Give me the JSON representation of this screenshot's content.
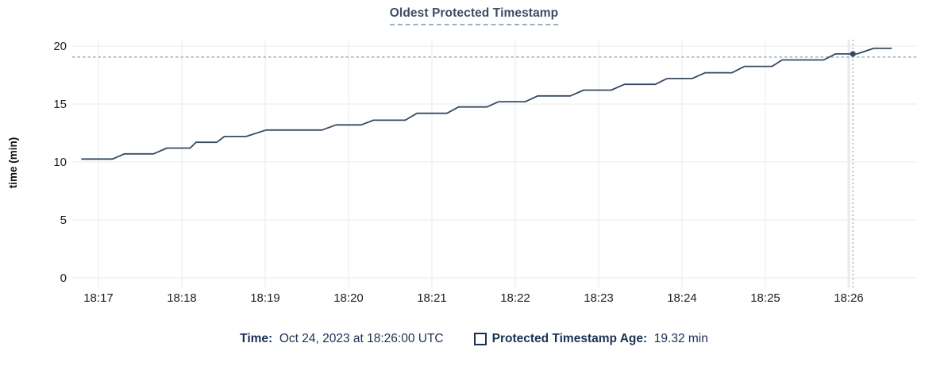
{
  "title": "Oldest Protected Timestamp",
  "footer": {
    "time_label": "Time:",
    "time_value": "Oct 24, 2023 at 18:26:00 UTC",
    "series_label": "Protected Timestamp Age:",
    "series_value": "19.32 min",
    "checkbox_icon": "unchecked-square"
  },
  "colors": {
    "line": "#374a63",
    "dot": "#374a63",
    "title_text": "#3e4c63",
    "title_underline": "#9cb0c3",
    "footer_text": "#1a3152",
    "crosshair": "#9fb1c1",
    "gridline": "#f0f0f0",
    "hover_band": "#e8eaec",
    "axis_text": "#1f1f1f"
  },
  "chart_data": {
    "type": "line",
    "title": "Oldest Protected Timestamp",
    "xlabel": "",
    "ylabel": "time (min)",
    "ylim": [
      0,
      20
    ],
    "y_ticks": [
      0,
      5,
      10,
      15,
      20
    ],
    "x_tick_labels": [
      "18:17",
      "18:18",
      "18:19",
      "18:20",
      "18:21",
      "18:22",
      "18:23",
      "18:24",
      "18:25",
      "18:26"
    ],
    "x_unit": "minutes after 18:17",
    "x_domain": [
      -0.31,
      9.82
    ],
    "grid": true,
    "legend_position": "bottom",
    "series": [
      {
        "name": "Protected Timestamp Age",
        "points": [
          [
            -0.2,
            10.25
          ],
          [
            0.17,
            10.25
          ],
          [
            0.31,
            10.7
          ],
          [
            0.66,
            10.7
          ],
          [
            0.82,
            11.2
          ],
          [
            1.1,
            11.2
          ],
          [
            1.17,
            11.7
          ],
          [
            1.42,
            11.7
          ],
          [
            1.51,
            12.2
          ],
          [
            1.77,
            12.2
          ],
          [
            2.01,
            12.75
          ],
          [
            2.68,
            12.75
          ],
          [
            2.85,
            13.2
          ],
          [
            3.15,
            13.2
          ],
          [
            3.3,
            13.6
          ],
          [
            3.68,
            13.6
          ],
          [
            3.82,
            14.2
          ],
          [
            4.18,
            14.2
          ],
          [
            4.32,
            14.75
          ],
          [
            4.66,
            14.75
          ],
          [
            4.8,
            15.2
          ],
          [
            5.12,
            15.2
          ],
          [
            5.27,
            15.7
          ],
          [
            5.66,
            15.7
          ],
          [
            5.82,
            16.2
          ],
          [
            6.15,
            16.2
          ],
          [
            6.31,
            16.7
          ],
          [
            6.68,
            16.7
          ],
          [
            6.82,
            17.2
          ],
          [
            7.12,
            17.2
          ],
          [
            7.28,
            17.7
          ],
          [
            7.6,
            17.7
          ],
          [
            7.75,
            18.25
          ],
          [
            8.08,
            18.25
          ],
          [
            8.2,
            18.8
          ],
          [
            8.7,
            18.8
          ],
          [
            8.84,
            19.32
          ],
          [
            9.1,
            19.32
          ],
          [
            9.3,
            19.8
          ],
          [
            9.51,
            19.8
          ]
        ]
      }
    ],
    "crosshair": {
      "x": 9.05,
      "x_time": "18:26:00",
      "value": 19.32,
      "hline_value": 19.05,
      "hover_band_x": 9.0
    }
  }
}
